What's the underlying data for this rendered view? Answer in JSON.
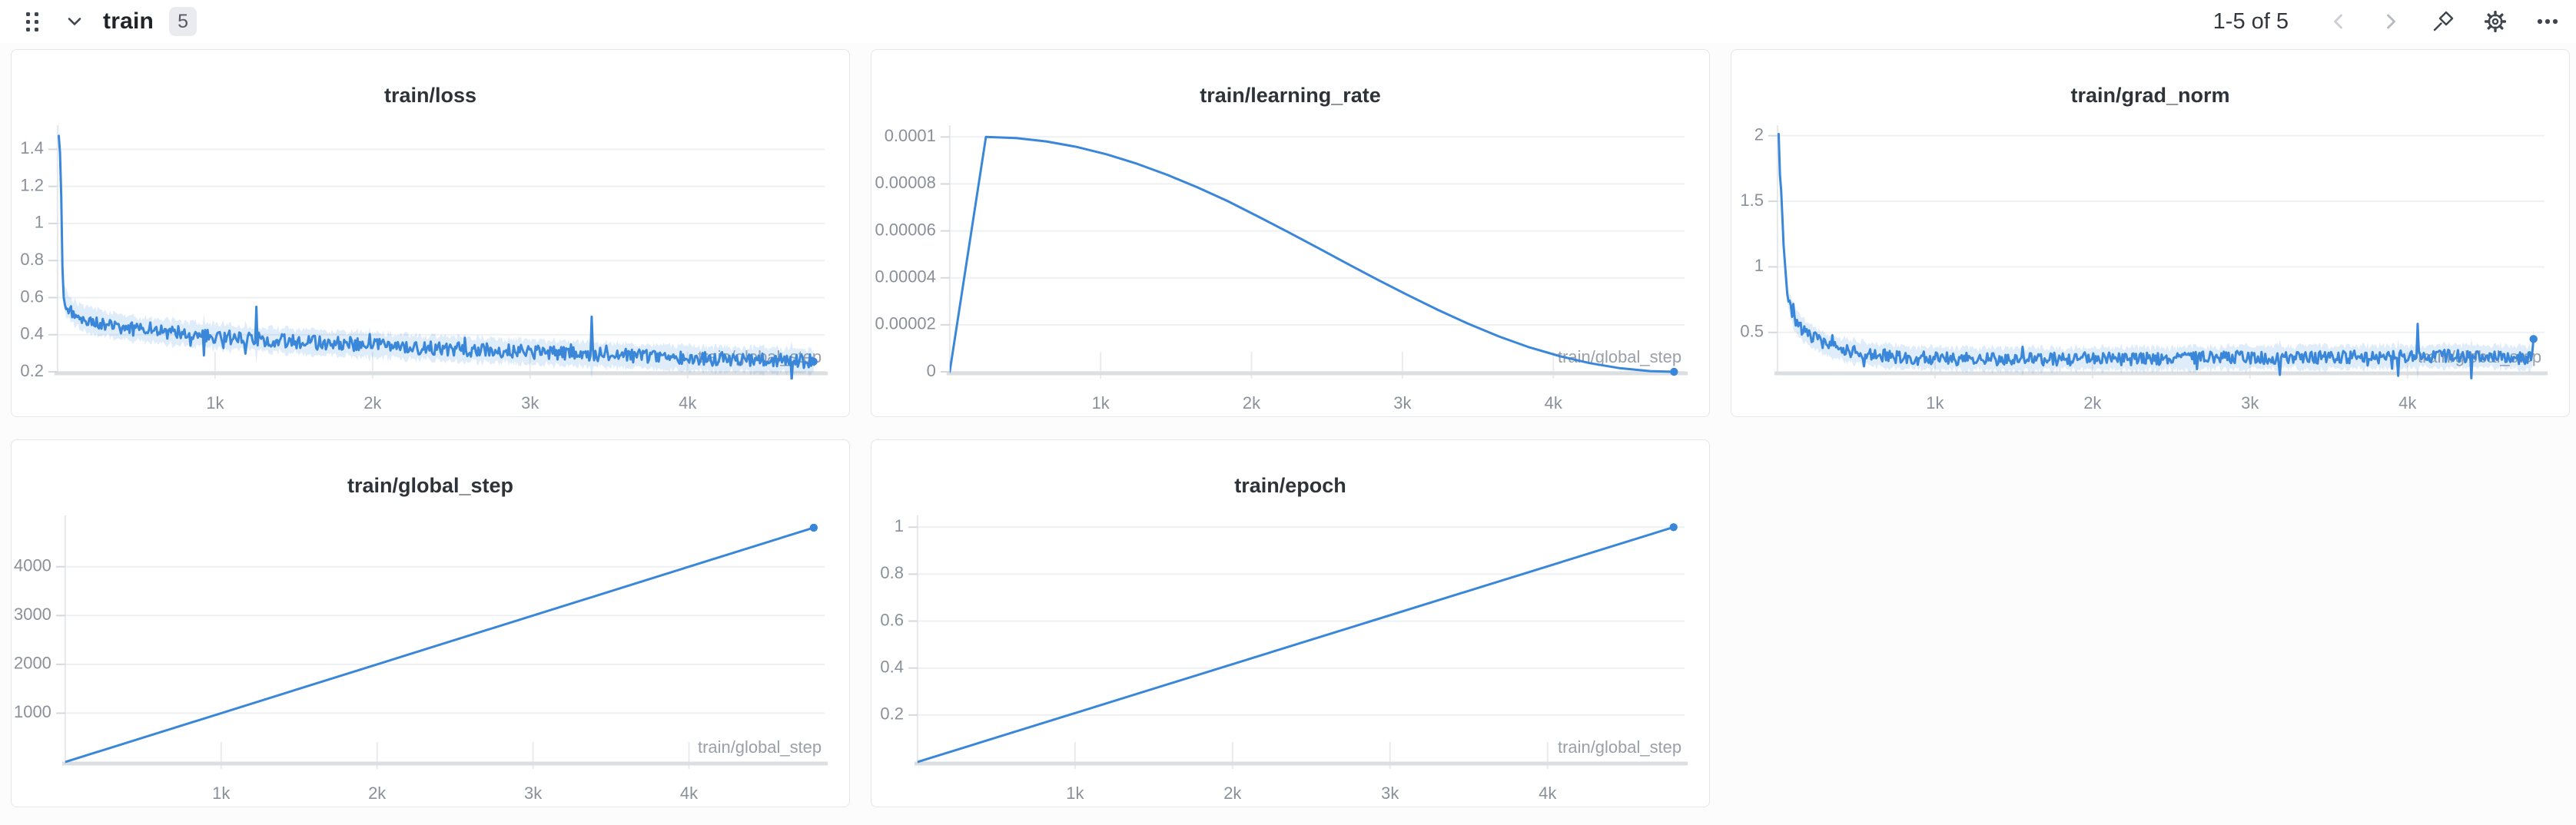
{
  "toolbar": {
    "title": "train",
    "badge_count": "5",
    "pagination": "1-5 of 5",
    "icons": {
      "drag_handle": "six-dot-grid",
      "collapse": "chevron-down",
      "prev": "chevron-left",
      "next": "chevron-right",
      "pin": "push-pin",
      "settings": "gear",
      "more": "ellipsis"
    }
  },
  "palette": {
    "series_blue": "#3a87da",
    "band_blue": "#3a87da",
    "title_text": "#2e333a",
    "tick_text": "#8a9099",
    "axis_label_text": "#9aa0a8",
    "grid_line": "#eef0f2",
    "axis_line": "#dcdfe2",
    "y_axis_line": "#e6e8eb",
    "tick_mark": "#d6d9dc",
    "x_tick_mark": "#e9ebee"
  },
  "chart_data": [
    {
      "type": "line",
      "title": "train/loss",
      "xlabel": "train/global_step",
      "xlim": [
        0,
        4870
      ],
      "ylim": [
        0.2,
        1.53
      ],
      "x_ticks": [
        1000,
        2000,
        3000,
        4000
      ],
      "x_tick_labels": [
        "1k",
        "2k",
        "3k",
        "4k"
      ],
      "y_ticks": [
        0.2,
        0.4,
        0.6,
        0.8,
        1,
        1.2,
        1.4
      ],
      "y_tick_labels": [
        "0.2",
        "0.4",
        "0.6",
        "0.8",
        "1",
        "1.2",
        "1.4"
      ],
      "grid": true,
      "legend": "none",
      "series": [
        {
          "name": "train/loss",
          "anchors_x": [
            8,
            20,
            35,
            60,
            100,
            160,
            240,
            350,
            500,
            700,
            900,
            1100,
            1400,
            1700,
            2000,
            2300,
            2600,
            2900,
            3200,
            3500,
            3800,
            4100,
            4400,
            4650,
            4800
          ],
          "anchors_y": [
            1.5,
            1.3,
            0.62,
            0.56,
            0.52,
            0.49,
            0.47,
            0.45,
            0.43,
            0.415,
            0.4,
            0.385,
            0.37,
            0.355,
            0.345,
            0.33,
            0.32,
            0.31,
            0.3,
            0.29,
            0.28,
            0.27,
            0.265,
            0.26,
            0.255
          ],
          "noise": 0.038,
          "spike_prob": 0.025,
          "spike_scale": 3.2,
          "samples": 620,
          "band": true,
          "end_dot": true
        }
      ]
    },
    {
      "type": "line",
      "title": "train/learning_rate",
      "xlabel": "train/global_step",
      "xlim": [
        0,
        4870
      ],
      "ylim": [
        0,
        0.000105
      ],
      "x_ticks": [
        1000,
        2000,
        3000,
        4000
      ],
      "x_tick_labels": [
        "1k",
        "2k",
        "3k",
        "4k"
      ],
      "y_ticks": [
        0,
        2e-05,
        4e-05,
        6e-05,
        8e-05,
        0.0001
      ],
      "y_tick_labels": [
        "0",
        "0.00002",
        "0.00004",
        "0.00006",
        "0.00008",
        "0.0001"
      ],
      "grid": true,
      "legend": "none",
      "series": [
        {
          "name": "train/learning_rate",
          "anchors_x": [
            0,
            240,
            440,
            640,
            840,
            1040,
            1240,
            1440,
            1640,
            1840,
            2040,
            2240,
            2440,
            2640,
            2840,
            3040,
            3240,
            3440,
            3640,
            3840,
            4040,
            4240,
            4440,
            4640,
            4800
          ],
          "anchors_y": [
            0,
            0.0001,
            9.953e-05,
            9.811e-05,
            9.579e-05,
            9.259e-05,
            8.86e-05,
            8.389e-05,
            7.857e-05,
            7.275e-05,
            6.624e-05,
            5.96e-05,
            5.275e-05,
            4.587e-05,
            3.905e-05,
            3.251e-05,
            2.62e-05,
            2.035e-05,
            1.506e-05,
            1.043e-05,
            6.7e-06,
            3.69e-06,
            1.53e-06,
            3e-07,
            0
          ],
          "noise": 0,
          "samples": 0,
          "band": false,
          "end_dot": true
        }
      ]
    },
    {
      "type": "line",
      "title": "train/grad_norm",
      "xlabel": "train/global_step",
      "xlim": [
        0,
        4870
      ],
      "ylim": [
        0.2,
        2.08
      ],
      "x_ticks": [
        1000,
        2000,
        3000,
        4000
      ],
      "x_tick_labels": [
        "1k",
        "2k",
        "3k",
        "4k"
      ],
      "y_ticks": [
        0.5,
        1,
        1.5,
        2
      ],
      "y_tick_labels": [
        "0.5",
        "1",
        "1.5",
        "2"
      ],
      "grid": true,
      "legend": "none",
      "series": [
        {
          "name": "train/grad_norm",
          "anchors_x": [
            8,
            20,
            40,
            70,
            110,
            160,
            230,
            320,
            450,
            600,
            800,
            1100,
            1500,
            2000,
            2500,
            3000,
            3500,
            4000,
            4400,
            4700,
            4790,
            4800
          ],
          "anchors_y": [
            2.0,
            1.75,
            1.1,
            0.75,
            0.6,
            0.52,
            0.46,
            0.4,
            0.36,
            0.33,
            0.31,
            0.3,
            0.295,
            0.3,
            0.3,
            0.31,
            0.31,
            0.315,
            0.32,
            0.31,
            0.3,
            0.45
          ],
          "noise": 0.05,
          "spike_prob": 0.03,
          "spike_scale": 3.0,
          "samples": 620,
          "band": true,
          "end_dot": true
        }
      ]
    },
    {
      "type": "line",
      "title": "train/global_step",
      "xlabel": "train/global_step",
      "xlim": [
        0,
        4870
      ],
      "ylim": [
        0,
        5050
      ],
      "x_ticks": [
        1000,
        2000,
        3000,
        4000
      ],
      "x_tick_labels": [
        "1k",
        "2k",
        "3k",
        "4k"
      ],
      "y_ticks": [
        1000,
        2000,
        3000,
        4000
      ],
      "y_tick_labels": [
        "1000",
        "2000",
        "3000",
        "4000"
      ],
      "grid": true,
      "legend": "none",
      "series": [
        {
          "name": "train/global_step",
          "anchors_x": [
            0,
            4800
          ],
          "anchors_y": [
            0,
            4800
          ],
          "noise": 0,
          "samples": 0,
          "band": false,
          "end_dot": true
        }
      ]
    },
    {
      "type": "line",
      "title": "train/epoch",
      "xlabel": "train/global_step",
      "xlim": [
        0,
        4870
      ],
      "ylim": [
        0,
        1.05
      ],
      "x_ticks": [
        1000,
        2000,
        3000,
        4000
      ],
      "x_tick_labels": [
        "1k",
        "2k",
        "3k",
        "4k"
      ],
      "y_ticks": [
        0.2,
        0.4,
        0.6,
        0.8,
        1
      ],
      "y_tick_labels": [
        "0.2",
        "0.4",
        "0.6",
        "0.8",
        "1"
      ],
      "grid": true,
      "legend": "none",
      "series": [
        {
          "name": "train/epoch",
          "anchors_x": [
            0,
            4800
          ],
          "anchors_y": [
            0,
            1
          ],
          "noise": 0,
          "samples": 0,
          "band": false,
          "end_dot": true
        }
      ]
    }
  ]
}
